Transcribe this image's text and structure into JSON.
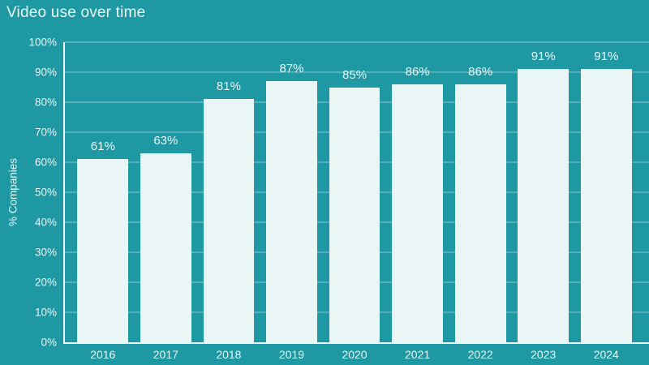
{
  "header": {
    "title": "Video use over time"
  },
  "colors": {
    "background": "#1e99a4",
    "bar_fill": "#eaf6f6",
    "gridline": "#ffffff3a",
    "axis_line": "#eef7f7",
    "text": "#ebf6f6"
  },
  "chart_data": {
    "type": "bar",
    "title": "Video use over time",
    "categories": [
      "2016",
      "2017",
      "2018",
      "2019",
      "2020",
      "2021",
      "2022",
      "2023",
      "2024"
    ],
    "values": [
      61,
      63,
      81,
      87,
      85,
      86,
      86,
      91,
      91
    ],
    "value_labels": [
      "61%",
      "63%",
      "81%",
      "87%",
      "85%",
      "86%",
      "86%",
      "91%",
      "91%"
    ],
    "xlabel": "",
    "ylabel": "% Companies",
    "ylim": [
      0,
      100
    ],
    "ytick_values": [
      0,
      10,
      20,
      30,
      40,
      50,
      60,
      70,
      80,
      90,
      100
    ],
    "ytick_labels": [
      "0%",
      "10%",
      "20%",
      "30%",
      "40%",
      "50%",
      "60%",
      "70%",
      "80%",
      "90%",
      "100%"
    ],
    "grid": true,
    "legend": false
  }
}
